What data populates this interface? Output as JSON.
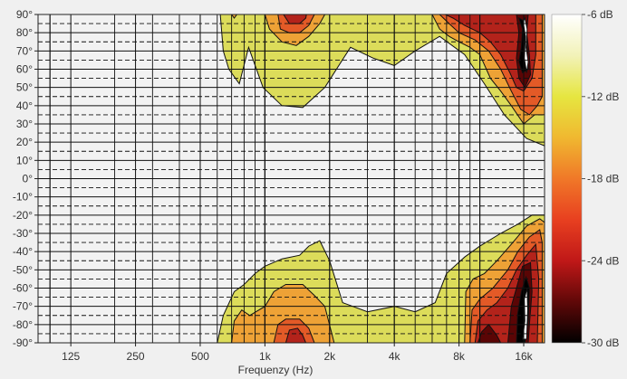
{
  "chart_data": {
    "type": "heatmap",
    "title": "",
    "xlabel": "Frequenzy (Hz)",
    "ylabel": "",
    "x_scale": "log",
    "xlim": [
      88,
      20000
    ],
    "ylim": [
      -90,
      90
    ],
    "x_ticks": [
      {
        "value": 125,
        "label": "125"
      },
      {
        "value": 250,
        "label": "250"
      },
      {
        "value": 500,
        "label": "500"
      },
      {
        "value": 1000,
        "label": "1k"
      },
      {
        "value": 2000,
        "label": "2k"
      },
      {
        "value": 4000,
        "label": "4k"
      },
      {
        "value": 8000,
        "label": "8k"
      },
      {
        "value": 16000,
        "label": "16k"
      }
    ],
    "y_ticks": [
      {
        "value": 90,
        "label": "90°"
      },
      {
        "value": 80,
        "label": "80°"
      },
      {
        "value": 70,
        "label": "70°"
      },
      {
        "value": 60,
        "label": "60°"
      },
      {
        "value": 50,
        "label": "50°"
      },
      {
        "value": 40,
        "label": "40°"
      },
      {
        "value": 30,
        "label": "30°"
      },
      {
        "value": 20,
        "label": "20°"
      },
      {
        "value": 10,
        "label": "10°"
      },
      {
        "value": 0,
        "label": "0°"
      },
      {
        "value": -10,
        "label": "-10°"
      },
      {
        "value": -20,
        "label": "-20°"
      },
      {
        "value": -30,
        "label": "-30°"
      },
      {
        "value": -40,
        "label": "-40°"
      },
      {
        "value": -50,
        "label": "-50°"
      },
      {
        "value": -60,
        "label": "-60°"
      },
      {
        "value": -70,
        "label": "-70°"
      },
      {
        "value": -80,
        "label": "-80°"
      },
      {
        "value": -90,
        "label": "-90°"
      }
    ],
    "colorbar": {
      "min": -30,
      "max": -6,
      "ticks": [
        {
          "value": -6,
          "label": "-6 dB"
        },
        {
          "value": -12,
          "label": "-12 dB"
        },
        {
          "value": -18,
          "label": "-18 dB"
        },
        {
          "value": -24,
          "label": "-24 dB"
        },
        {
          "value": -30,
          "label": "-30 dB"
        }
      ],
      "stops": [
        {
          "value": -6,
          "color": "#ffffff"
        },
        {
          "value": -9,
          "color": "#f2f2b8"
        },
        {
          "value": -12,
          "color": "#e6e640"
        },
        {
          "value": -15,
          "color": "#f0b830"
        },
        {
          "value": -18,
          "color": "#f07828"
        },
        {
          "value": -21,
          "color": "#e84020"
        },
        {
          "value": -24,
          "color": "#c01818"
        },
        {
          "value": -27,
          "color": "#600808"
        },
        {
          "value": -30,
          "color": "#000000"
        }
      ]
    },
    "contour_levels": [
      -9,
      -12,
      -18,
      -24,
      -27,
      -30
    ],
    "level_colors": {
      "-9": "#dcdc5a",
      "-12": "#eea236",
      "-18": "#e35a27",
      "-24": "#b3231b",
      "-27": "#5a0505",
      "-30": "#000000"
    },
    "regions": [
      {
        "level": -9,
        "points": [
          [
            620,
            90
          ],
          [
            640,
            70
          ],
          [
            680,
            60
          ],
          [
            760,
            52
          ],
          [
            840,
            72
          ],
          [
            980,
            50
          ],
          [
            1200,
            40
          ],
          [
            1500,
            39
          ],
          [
            1900,
            50
          ],
          [
            2500,
            72
          ],
          [
            3200,
            66
          ],
          [
            4000,
            62
          ],
          [
            5000,
            70
          ],
          [
            6500,
            78
          ],
          [
            8500,
            68
          ],
          [
            10500,
            52
          ],
          [
            13000,
            35
          ],
          [
            16500,
            22
          ],
          [
            20000,
            18
          ],
          [
            20000,
            90
          ]
        ]
      },
      {
        "level": -9,
        "points": [
          [
            600,
            -90
          ],
          [
            640,
            -75
          ],
          [
            720,
            -62
          ],
          [
            800,
            -58
          ],
          [
            900,
            -52
          ],
          [
            1000,
            -48
          ],
          [
            1200,
            -44
          ],
          [
            1450,
            -42
          ],
          [
            1600,
            -37
          ],
          [
            1800,
            -34
          ],
          [
            2000,
            -45
          ],
          [
            2300,
            -68
          ],
          [
            3000,
            -73
          ],
          [
            4000,
            -70
          ],
          [
            5000,
            -73
          ],
          [
            6200,
            -68
          ],
          [
            7000,
            -52
          ],
          [
            8500,
            -43
          ],
          [
            10000,
            -37
          ],
          [
            12500,
            -30
          ],
          [
            15000,
            -25
          ],
          [
            17500,
            -20
          ],
          [
            20000,
            -20
          ],
          [
            20000,
            -90
          ]
        ]
      },
      {
        "level": -12,
        "points": [
          [
            700,
            90
          ],
          [
            720,
            88
          ],
          [
            740,
            90
          ]
        ]
      },
      {
        "level": -12,
        "points": [
          [
            1000,
            90
          ],
          [
            1050,
            82
          ],
          [
            1200,
            75
          ],
          [
            1400,
            73
          ],
          [
            1600,
            78
          ],
          [
            1800,
            85
          ],
          [
            1900,
            90
          ]
        ]
      },
      {
        "level": -12,
        "points": [
          [
            6000,
            90
          ],
          [
            6500,
            82
          ],
          [
            7200,
            78
          ],
          [
            8000,
            75
          ],
          [
            9000,
            72
          ],
          [
            10000,
            68
          ],
          [
            11200,
            55
          ],
          [
            12500,
            48
          ],
          [
            14000,
            40
          ],
          [
            16000,
            30
          ],
          [
            18000,
            35
          ],
          [
            20000,
            35
          ],
          [
            20000,
            90
          ]
        ]
      },
      {
        "level": -12,
        "points": [
          [
            700,
            -90
          ],
          [
            720,
            -78
          ],
          [
            780,
            -72
          ],
          [
            850,
            -75
          ],
          [
            1000,
            -70
          ],
          [
            1100,
            -62
          ],
          [
            1250,
            -58
          ],
          [
            1500,
            -58
          ],
          [
            1700,
            -64
          ],
          [
            1900,
            -70
          ],
          [
            2100,
            -90
          ]
        ]
      },
      {
        "level": -12,
        "points": [
          [
            8500,
            -90
          ],
          [
            8600,
            -62
          ],
          [
            9300,
            -55
          ],
          [
            10500,
            -52
          ],
          [
            12000,
            -45
          ],
          [
            14000,
            -36
          ],
          [
            16500,
            -26
          ],
          [
            19000,
            -22
          ],
          [
            20000,
            -24
          ],
          [
            20000,
            -90
          ]
        ]
      },
      {
        "level": -18,
        "points": [
          [
            1150,
            90
          ],
          [
            1180,
            82
          ],
          [
            1300,
            80
          ],
          [
            1450,
            80
          ],
          [
            1600,
            84
          ],
          [
            1700,
            90
          ]
        ]
      },
      {
        "level": -18,
        "points": [
          [
            6500,
            90
          ],
          [
            7200,
            85
          ],
          [
            8000,
            80
          ],
          [
            9500,
            76
          ],
          [
            11000,
            70
          ],
          [
            12500,
            60
          ],
          [
            14000,
            48
          ],
          [
            15500,
            38
          ],
          [
            17000,
            35
          ],
          [
            18500,
            40
          ],
          [
            19500,
            45
          ],
          [
            19500,
            90
          ]
        ]
      },
      {
        "level": -18,
        "points": [
          [
            1100,
            -90
          ],
          [
            1150,
            -80
          ],
          [
            1250,
            -77
          ],
          [
            1450,
            -77
          ],
          [
            1600,
            -82
          ],
          [
            1700,
            -90
          ]
        ]
      },
      {
        "level": -18,
        "points": [
          [
            9000,
            -90
          ],
          [
            9200,
            -72
          ],
          [
            10000,
            -66
          ],
          [
            11500,
            -60
          ],
          [
            13500,
            -50
          ],
          [
            15000,
            -40
          ],
          [
            17000,
            -32
          ],
          [
            19000,
            -28
          ],
          [
            19500,
            -35
          ],
          [
            19500,
            -90
          ]
        ]
      },
      {
        "level": -24,
        "points": [
          [
            1220,
            90
          ],
          [
            1300,
            85
          ],
          [
            1450,
            85
          ],
          [
            1550,
            88
          ],
          [
            1560,
            90
          ]
        ]
      },
      {
        "level": -24,
        "points": [
          [
            6900,
            90
          ],
          [
            7500,
            88
          ],
          [
            8500,
            84
          ],
          [
            10000,
            80
          ],
          [
            11200,
            75
          ],
          [
            12500,
            68
          ],
          [
            13800,
            58
          ],
          [
            14800,
            50
          ],
          [
            16000,
            48
          ],
          [
            17500,
            55
          ],
          [
            18200,
            68
          ],
          [
            18200,
            90
          ]
        ]
      },
      {
        "level": -24,
        "points": [
          [
            1250,
            -90
          ],
          [
            1300,
            -83
          ],
          [
            1420,
            -82
          ],
          [
            1500,
            -86
          ],
          [
            1550,
            -90
          ]
        ]
      },
      {
        "level": -24,
        "points": [
          [
            9500,
            -90
          ],
          [
            9800,
            -78
          ],
          [
            10800,
            -72
          ],
          [
            12000,
            -68
          ],
          [
            13500,
            -60
          ],
          [
            14800,
            -50
          ],
          [
            16500,
            -42
          ],
          [
            18200,
            -36
          ],
          [
            18800,
            -55
          ],
          [
            18500,
            -90
          ]
        ]
      },
      {
        "level": -27,
        "points": [
          [
            14800,
            90
          ],
          [
            15200,
            80
          ],
          [
            14800,
            66
          ],
          [
            15200,
            55
          ],
          [
            16200,
            50
          ],
          [
            17200,
            57
          ],
          [
            17000,
            68
          ],
          [
            16500,
            80
          ],
          [
            16800,
            90
          ]
        ]
      },
      {
        "level": -27,
        "points": [
          [
            9800,
            -90
          ],
          [
            10200,
            -84
          ],
          [
            11000,
            -80
          ],
          [
            12000,
            -86
          ],
          [
            12500,
            -90
          ]
        ]
      },
      {
        "level": -27,
        "points": [
          [
            13500,
            -90
          ],
          [
            14000,
            -70
          ],
          [
            14800,
            -60
          ],
          [
            15800,
            -48
          ],
          [
            17200,
            -46
          ],
          [
            17500,
            -62
          ],
          [
            17000,
            -80
          ],
          [
            16800,
            -90
          ]
        ]
      },
      {
        "level": -30,
        "points": [
          [
            15200,
            88
          ],
          [
            15800,
            82
          ],
          [
            15600,
            72
          ],
          [
            15200,
            64
          ],
          [
            15800,
            58
          ],
          [
            16800,
            60
          ],
          [
            16500,
            76
          ],
          [
            16300,
            86
          ]
        ]
      },
      {
        "level": -30,
        "points": [
          [
            14800,
            -90
          ],
          [
            15000,
            -74
          ],
          [
            15600,
            -62
          ],
          [
            16400,
            -54
          ],
          [
            17000,
            -60
          ],
          [
            16800,
            -78
          ],
          [
            16200,
            -90
          ]
        ]
      },
      {
        "level": -6,
        "points": [
          [
            16200,
            88
          ],
          [
            16600,
            82
          ],
          [
            16400,
            72
          ],
          [
            16800,
            64
          ],
          [
            16500,
            58
          ],
          [
            16100,
            66
          ],
          [
            16300,
            78
          ],
          [
            15900,
            86
          ]
        ]
      },
      {
        "level": -6,
        "points": [
          [
            15800,
            -88
          ],
          [
            16200,
            -78
          ],
          [
            16100,
            -66
          ],
          [
            16600,
            -60
          ],
          [
            16700,
            -72
          ],
          [
            16500,
            -88
          ]
        ]
      }
    ],
    "grid": true
  }
}
